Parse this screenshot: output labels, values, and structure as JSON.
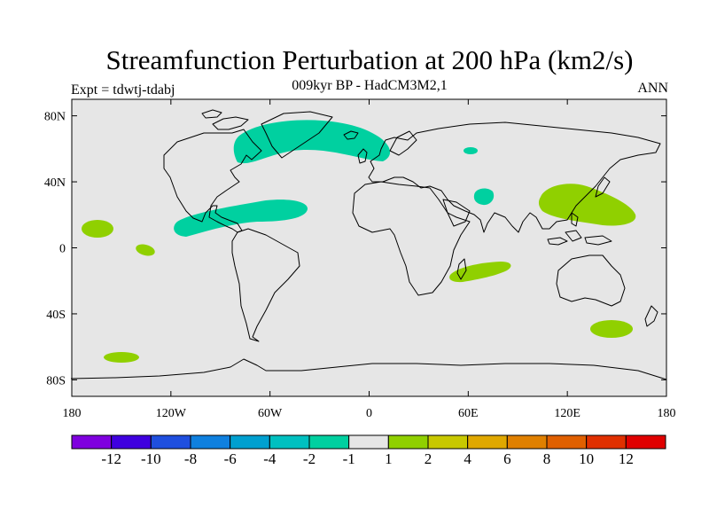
{
  "header": {
    "title": "Streamfunction Perturbation at 200 hPa (km2/s)",
    "subtitle": "009kyr BP - HadCM3M2,1",
    "left_label": "Expt = tdwtj-tdabj",
    "right_label": "ANN"
  },
  "axes": {
    "x_ticks": [
      {
        "value": -180,
        "label": "180"
      },
      {
        "value": -120,
        "label": "120W"
      },
      {
        "value": -60,
        "label": "60W"
      },
      {
        "value": 0,
        "label": "0"
      },
      {
        "value": 60,
        "label": "60E"
      },
      {
        "value": 120,
        "label": "120E"
      },
      {
        "value": 180,
        "label": "180"
      }
    ],
    "y_ticks": [
      {
        "value": 80,
        "label": "80N"
      },
      {
        "value": 40,
        "label": "40N"
      },
      {
        "value": 0,
        "label": "0"
      },
      {
        "value": -40,
        "label": "40S"
      },
      {
        "value": -80,
        "label": "80S"
      }
    ],
    "lon_range": [
      -180,
      180
    ],
    "lat_range": [
      -90,
      90
    ]
  },
  "colorbar": {
    "colors": [
      "#7f00df",
      "#3f00df",
      "#1f4fdf",
      "#0f80df",
      "#00a0d0",
      "#00c0c0",
      "#00d0a0",
      "#e6e6e6",
      "#90d000",
      "#c8c800",
      "#e0a800",
      "#e08000",
      "#e06000",
      "#e03000",
      "#e00000"
    ],
    "labels": [
      "-12",
      "-10",
      "-8",
      "-6",
      "-4",
      "-2",
      "-1",
      "1",
      "2",
      "4",
      "6",
      "8",
      "10",
      "12"
    ]
  },
  "colors": {
    "background_field": "#e6e6e6",
    "negative_anomaly": "#00d0a0",
    "positive_anomaly": "#90d000"
  },
  "anomaly_regions": [
    {
      "sign": "negative",
      "lon": [
        -75,
        -5
      ],
      "lat": [
        55,
        77
      ]
    },
    {
      "sign": "negative",
      "lon": [
        -118,
        -38
      ],
      "lat": [
        10,
        27
      ]
    },
    {
      "sign": "negative",
      "lon": [
        60,
        72
      ],
      "lat": [
        28,
        35
      ]
    },
    {
      "sign": "negative",
      "lon": [
        57,
        63
      ],
      "lat": [
        58,
        60
      ]
    },
    {
      "sign": "positive",
      "lon": [
        -176,
        -163
      ],
      "lat": [
        8,
        17
      ]
    },
    {
      "sign": "positive",
      "lon": [
        -152,
        -141
      ],
      "lat": [
        -3,
        3
      ]
    },
    {
      "sign": "positive",
      "lon": [
        105,
        163
      ],
      "lat": [
        15,
        40
      ]
    },
    {
      "sign": "positive",
      "lon": [
        50,
        88
      ],
      "lat": [
        -19,
        -7
      ]
    },
    {
      "sign": "positive",
      "lon": [
        136,
        162
      ],
      "lat": [
        -53,
        -42
      ]
    },
    {
      "sign": "positive",
      "lon": [
        -163,
        -143
      ],
      "lat": [
        -67,
        -63
      ]
    }
  ]
}
